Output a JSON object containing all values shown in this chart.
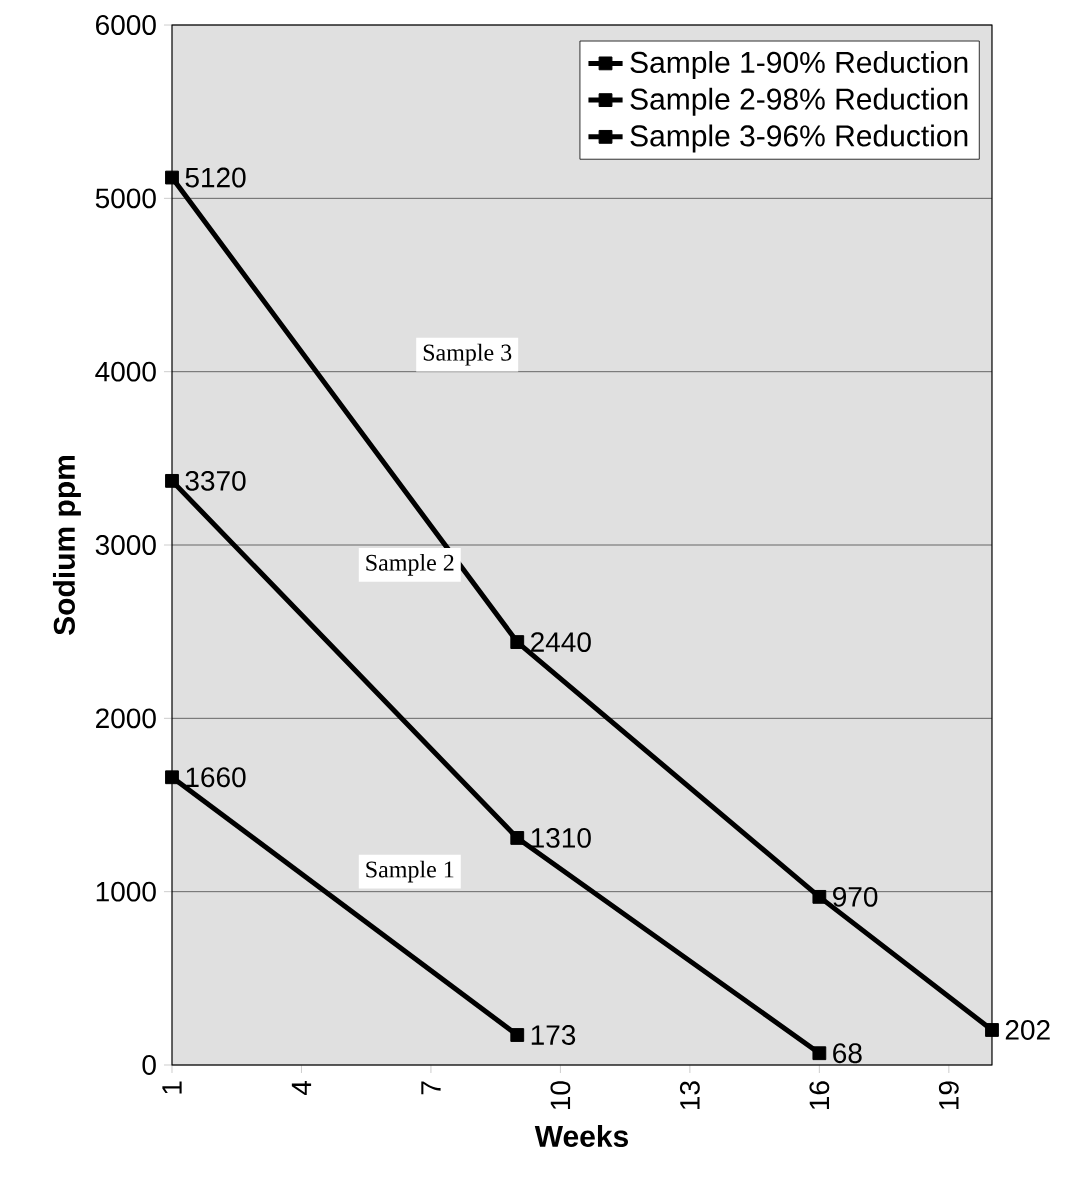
{
  "chart_data": {
    "type": "line",
    "xlabel": "Weeks",
    "ylabel": "Sodium ppm",
    "xlim": [
      1,
      20
    ],
    "xticks": [
      1,
      4,
      7,
      10,
      13,
      16,
      19
    ],
    "ylim": [
      0,
      6000
    ],
    "yticks": [
      0,
      1000,
      2000,
      3000,
      4000,
      5000,
      6000
    ],
    "grid": "y",
    "legend": "top right",
    "marker": "square",
    "line_style": "solid",
    "data_labels": true,
    "series": [
      {
        "name": "Sample 1-90% Reduction",
        "color": "#000000",
        "x": [
          1,
          9
        ],
        "values": [
          1660,
          173
        ]
      },
      {
        "name": "Sample 2-98% Reduction",
        "color": "#000000",
        "x": [
          1,
          9,
          16
        ],
        "values": [
          3370,
          1310,
          68
        ]
      },
      {
        "name": "Sample 3-96% Reduction",
        "color": "#000000",
        "x": [
          1,
          9,
          16,
          20
        ],
        "values": [
          5120,
          2440,
          970,
          202
        ]
      }
    ],
    "annotations": [
      "Sample 3",
      "Sample 2",
      "Sample 1"
    ]
  }
}
